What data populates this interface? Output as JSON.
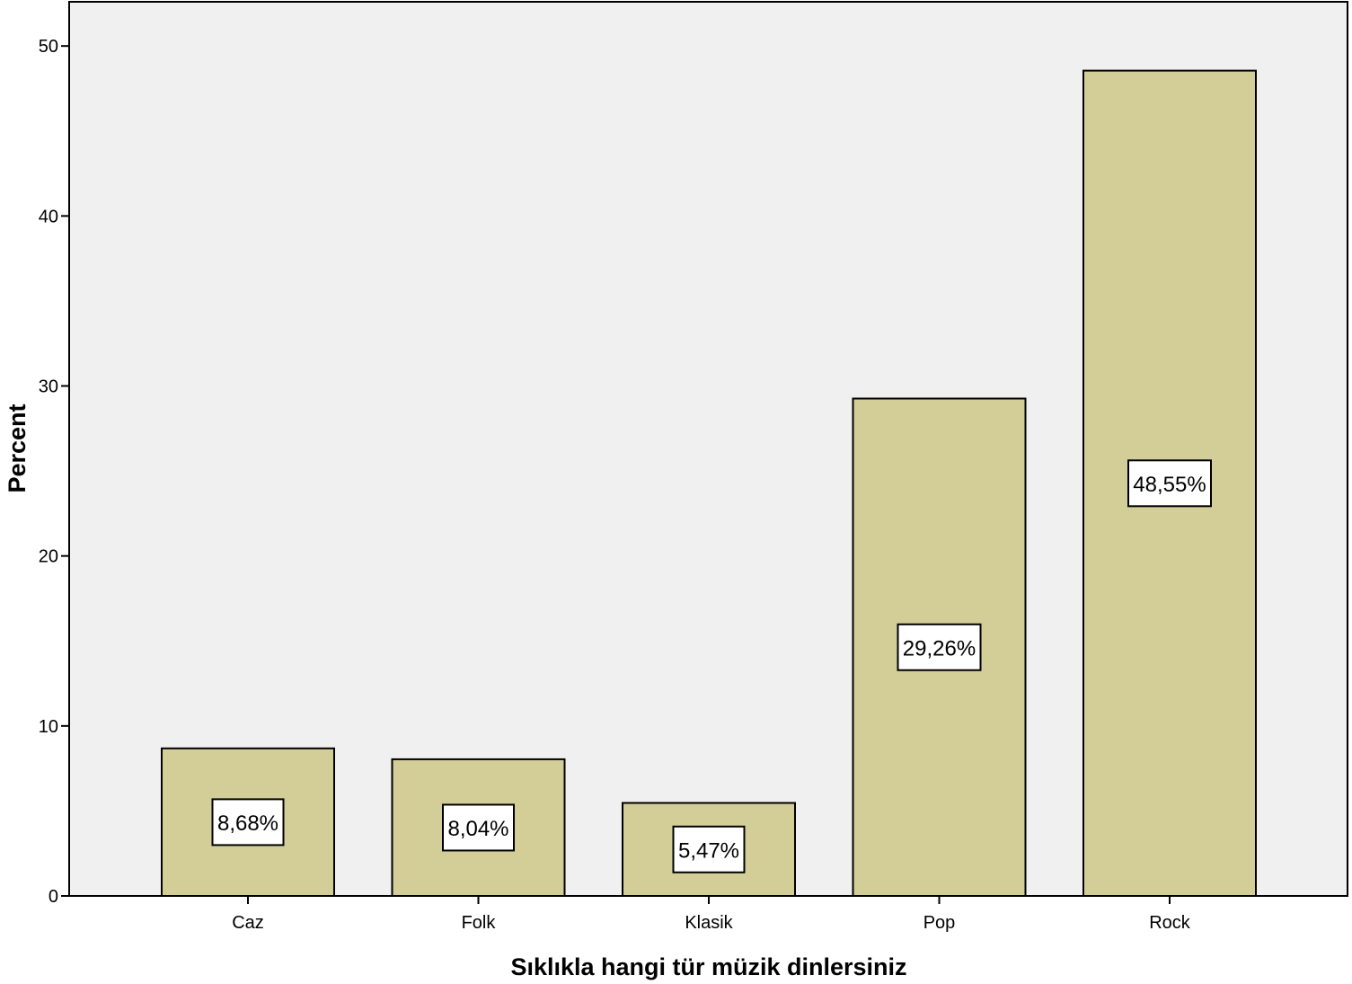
{
  "chart_data": {
    "type": "bar",
    "categories": [
      "Caz",
      "Folk",
      "Klasik",
      "Pop",
      "Rock"
    ],
    "values": [
      8.68,
      8.04,
      5.47,
      29.26,
      48.55
    ],
    "data_labels": [
      "8,68%",
      "8,04%",
      "5,47%",
      "29,26%",
      "48,55%"
    ],
    "xlabel": "Sıklıkla hangi tür müzik dinlersiniz",
    "ylabel": "Percent",
    "ylim": [
      0,
      52.6
    ],
    "yticks": [
      0,
      10,
      20,
      30,
      40,
      50
    ],
    "ytick_labels": [
      "0",
      "10",
      "20",
      "30",
      "40",
      "50"
    ],
    "grid": false,
    "colors": {
      "bar_fill": "#D3CE98",
      "plot_background": "#F0F0F0",
      "stroke": "#000000",
      "label_box": "#FFFFFF"
    }
  }
}
